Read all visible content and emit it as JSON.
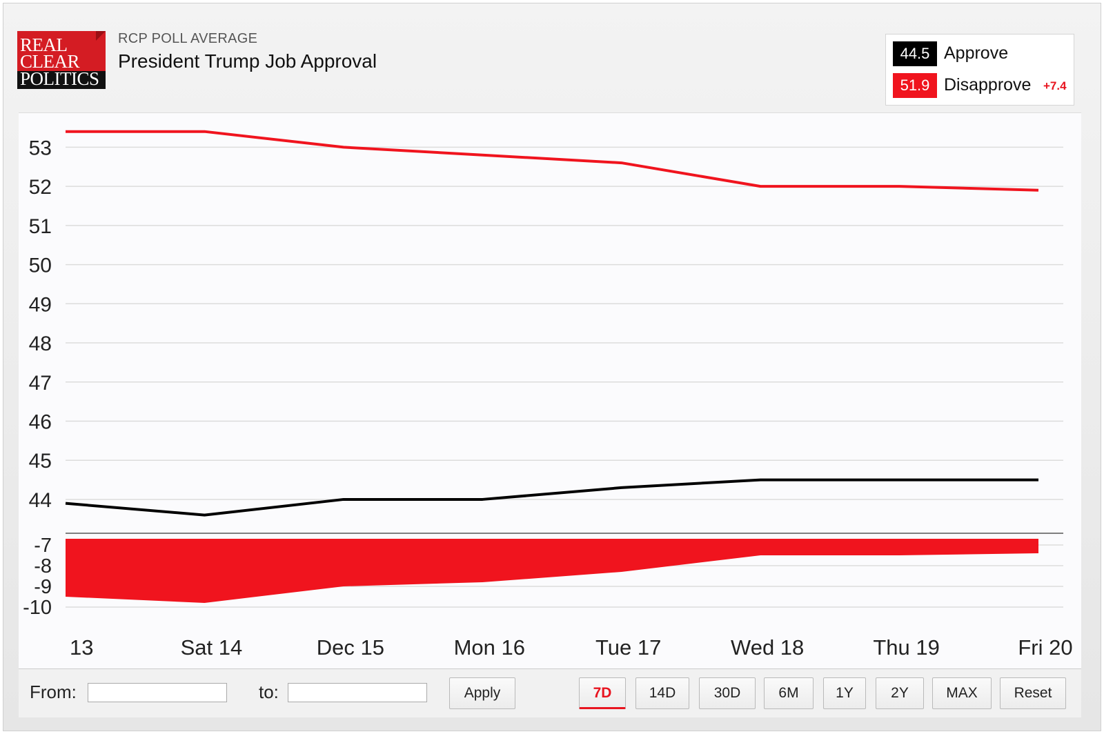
{
  "header": {
    "logo_lines": [
      "REAL",
      "CLEAR",
      "POLITICS"
    ],
    "kicker": "RCP POLL AVERAGE",
    "title": "President Trump Job Approval"
  },
  "legend": {
    "approve": {
      "value": "44.5",
      "label": "Approve",
      "color": "#000000"
    },
    "disapprove": {
      "value": "51.9",
      "label": "Disapprove",
      "color": "#f0141e"
    },
    "spread": "+7.4"
  },
  "chart_data": [
    {
      "type": "line",
      "x": [
        "13",
        "Sat 14",
        "Dec 15",
        "Mon 16",
        "Tue 17",
        "Wed 18",
        "Thu 19",
        "Fri 20"
      ],
      "series": [
        {
          "name": "Disapprove",
          "color": "#f0141e",
          "values": [
            53.4,
            53.4,
            53.0,
            52.8,
            52.6,
            52.0,
            52.0,
            51.9
          ]
        },
        {
          "name": "Approve",
          "color": "#000000",
          "values": [
            43.9,
            43.6,
            44.0,
            44.0,
            44.3,
            44.5,
            44.5,
            44.5
          ]
        }
      ],
      "ylim": [
        43.1,
        53.8
      ],
      "yticks": [
        "53",
        "52",
        "51",
        "50",
        "49",
        "48",
        "47",
        "46",
        "45",
        "44"
      ],
      "grid": true
    },
    {
      "type": "area",
      "x": [
        "13",
        "Sat 14",
        "Dec 15",
        "Mon 16",
        "Tue 17",
        "Wed 18",
        "Thu 19",
        "Fri 20"
      ],
      "series": [
        {
          "name": "Spread",
          "color": "#f0141e",
          "values": [
            -9.5,
            -9.8,
            -9.0,
            -8.8,
            -8.3,
            -7.5,
            -7.5,
            -7.4
          ]
        }
      ],
      "ylim": [
        -10.5,
        -6.5
      ],
      "yticks": [
        "-7",
        "-8",
        "-9",
        "-10"
      ],
      "grid": true
    }
  ],
  "controls": {
    "from_label": "From:",
    "to_label": "to:",
    "from_value": "",
    "to_value": "",
    "apply": "Apply",
    "ranges": [
      "7D",
      "14D",
      "30D",
      "6M",
      "1Y",
      "2Y",
      "MAX"
    ],
    "active_range": "7D",
    "reset": "Reset"
  }
}
